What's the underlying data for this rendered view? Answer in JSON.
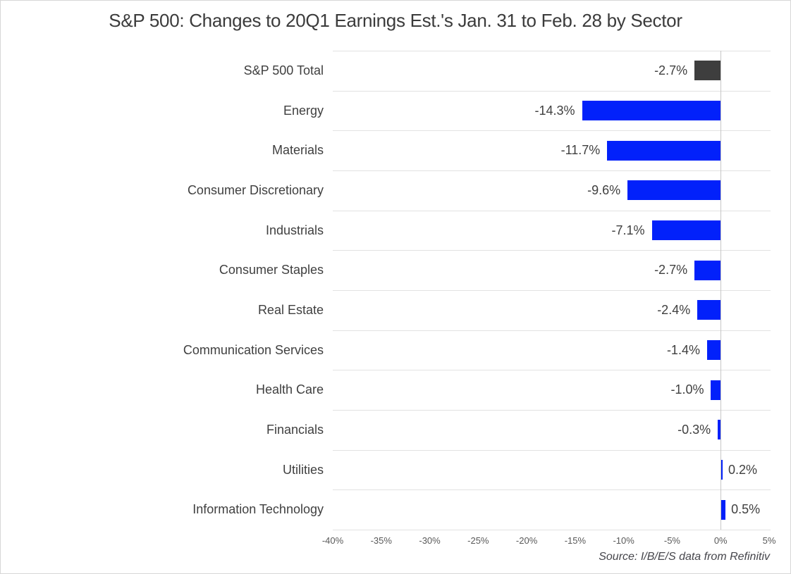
{
  "chart_data": {
    "type": "bar",
    "orientation": "horizontal",
    "title": "S&P 500: Changes to 20Q1 Earnings Est.'s Jan. 31 to Feb. 28 by Sector",
    "categories": [
      "S&P 500 Total",
      "Energy",
      "Materials",
      "Consumer Discretionary",
      "Industrials",
      "Consumer Staples",
      "Real Estate",
      "Communication Services",
      "Health Care",
      "Financials",
      "Utilities",
      "Information Technology"
    ],
    "values": [
      -2.7,
      -14.3,
      -11.7,
      -9.6,
      -7.1,
      -2.7,
      -2.4,
      -1.4,
      -1.0,
      -0.3,
      0.2,
      0.5
    ],
    "value_labels": [
      "-2.7%",
      "-14.3%",
      "-11.7%",
      "-9.6%",
      "-7.1%",
      "-2.7%",
      "-2.4%",
      "-1.4%",
      "-1.0%",
      "-0.3%",
      "0.2%",
      "0.5%"
    ],
    "bar_colors": [
      "#3e3e3e",
      "#0221fa",
      "#0221fa",
      "#0221fa",
      "#0221fa",
      "#0221fa",
      "#0221fa",
      "#0221fa",
      "#0221fa",
      "#0221fa",
      "#0221fa",
      "#0221fa"
    ],
    "xlim": [
      -40,
      5
    ],
    "xtick_values": [
      -40,
      -35,
      -30,
      -25,
      -20,
      -15,
      -10,
      -5,
      0,
      5
    ],
    "xtick_labels": [
      "-40%",
      "-35%",
      "-30%",
      "-25%",
      "-20%",
      "-15%",
      "-10%",
      "-5%",
      "0%",
      "5%"
    ],
    "grid": "horizontal category separators, vertical zero axis line",
    "legend": "none",
    "source": "Source: I/B/E/S data from Refinitiv",
    "colors": {
      "total_bar": "#3e3e3e",
      "sector_bar": "#0221fa",
      "gridline": "#e2e2e2",
      "zero_line": "#c6c6c6",
      "label_text": "#3f3f3f",
      "tick_text": "#595959",
      "frame_border": "#d7d7d7",
      "background": "#ffffff"
    }
  }
}
